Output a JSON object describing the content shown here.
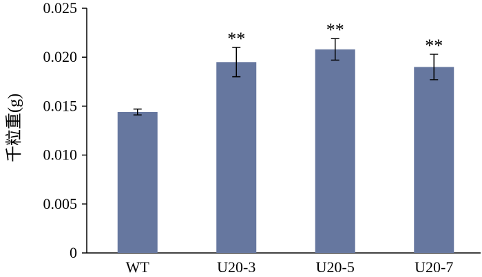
{
  "chart_data": {
    "type": "bar",
    "title": "",
    "xlabel": "",
    "ylabel": "千粒重(g)",
    "ylim": [
      0,
      0.025
    ],
    "yticks": [
      0,
      0.005,
      0.01,
      0.015,
      0.02,
      0.025
    ],
    "ytick_labels": [
      "0",
      "0.005",
      "0.010",
      "0.015",
      "0.020",
      "0.025"
    ],
    "grid": false,
    "bar_color": "#66779f",
    "categories": [
      "WT",
      "U20-3",
      "U20-5",
      "U20-7"
    ],
    "values": [
      0.0144,
      0.0195,
      0.0208,
      0.019
    ],
    "errors": [
      0.0003,
      0.0015,
      0.0011,
      0.0013
    ],
    "annotations": [
      "",
      "**",
      "**",
      "**"
    ]
  }
}
